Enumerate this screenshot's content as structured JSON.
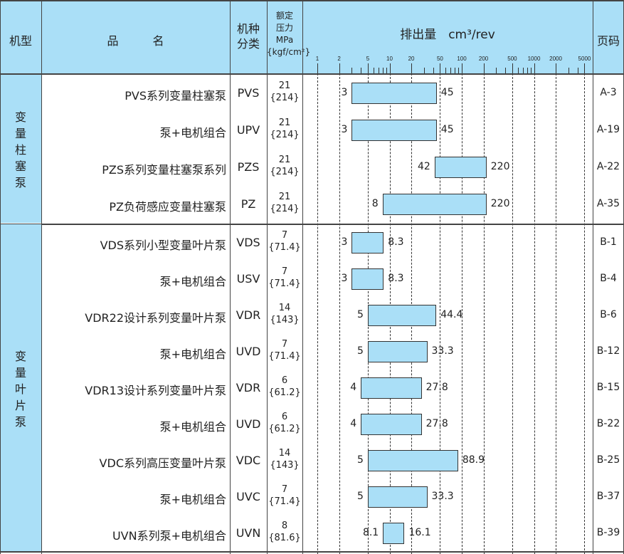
{
  "header": {
    "type": "机型",
    "name": "品　　　名",
    "code": "机种\n分类",
    "pressure": "额定\n压力\nMPa\n{kgf/cm²}",
    "displacement": "排出量　cm³/rev",
    "page": "页码"
  },
  "colors": {
    "header_bg": "#aadff7",
    "bar_fill": "#aadff7",
    "border": "#333333"
  },
  "chart_data": {
    "type": "bar",
    "orientation": "horizontal-range",
    "xscale": "log",
    "xlim": [
      1,
      5000
    ],
    "grid": true,
    "xlabel": "排出量　cm³/rev",
    "ticks": [
      1,
      2,
      5,
      10,
      20,
      50,
      100,
      200,
      500,
      1000,
      2000,
      5000
    ],
    "groups": [
      {
        "name": "变\n量\n柱\n塞\n泵",
        "rows": [
          {
            "name": "PVS系列变量柱塞泵",
            "code": "PVS",
            "pressure": "21",
            "pressure_kgf": "{214}",
            "min": "3",
            "max": "45",
            "page": "A-3"
          },
          {
            "name": "泵+电机组合",
            "code": "UPV",
            "pressure": "21",
            "pressure_kgf": "{214}",
            "min": "3",
            "max": "45",
            "page": "A-19"
          },
          {
            "name": "PZS系列变量柱塞泵系列",
            "code": "PZS",
            "pressure": "21",
            "pressure_kgf": "{214}",
            "min": "42",
            "max": "220",
            "page": "A-22"
          },
          {
            "name": "PZ负荷感应变量柱塞泵",
            "code": "PZ",
            "pressure": "21",
            "pressure_kgf": "{214}",
            "min": "8",
            "max": "220",
            "page": "A-35"
          }
        ]
      },
      {
        "name": "变\n量\n叶\n片\n泵",
        "rows": [
          {
            "name": "VDS系列小型变量叶片泵",
            "code": "VDS",
            "pressure": "7",
            "pressure_kgf": "{71.4}",
            "min": "3",
            "max": "8.3",
            "page": "B-1"
          },
          {
            "name": "泵+电机组合",
            "code": "USV",
            "pressure": "7",
            "pressure_kgf": "{71.4}",
            "min": "3",
            "max": "8.3",
            "page": "B-4"
          },
          {
            "name": "VDR22设计系列变量叶片泵",
            "code": "VDR",
            "pressure": "14",
            "pressure_kgf": "{143}",
            "min": "5",
            "max": "44.4",
            "page": "B-6"
          },
          {
            "name": "泵+电机组合",
            "code": "UVD",
            "pressure": "7",
            "pressure_kgf": "{71.4}",
            "min": "5",
            "max": "33.3",
            "page": "B-12"
          },
          {
            "name": "VDR13设计系列变量叶片泵",
            "code": "VDR",
            "pressure": "6",
            "pressure_kgf": "{61.2}",
            "min": "4",
            "max": "27.8",
            "page": "B-15"
          },
          {
            "name": "泵+电机组合",
            "code": "UVD",
            "pressure": "6",
            "pressure_kgf": "{61.2}",
            "min": "4",
            "max": "27.8",
            "page": "B-22"
          },
          {
            "name": "VDC系列高压变量叶片泵",
            "code": "VDC",
            "pressure": "14",
            "pressure_kgf": "{143}",
            "min": "5",
            "max": "88.9",
            "page": "B-25"
          },
          {
            "name": "泵+电机组合",
            "code": "UVC",
            "pressure": "7",
            "pressure_kgf": "{71.4}",
            "min": "5",
            "max": "33.3",
            "page": "B-37"
          },
          {
            "name": "UVN系列泵+电机组合",
            "code": "UVN",
            "pressure": "8",
            "pressure_kgf": "{81.6}",
            "min": "8.1",
            "max": "16.1",
            "page": "B-39"
          }
        ]
      }
    ]
  }
}
